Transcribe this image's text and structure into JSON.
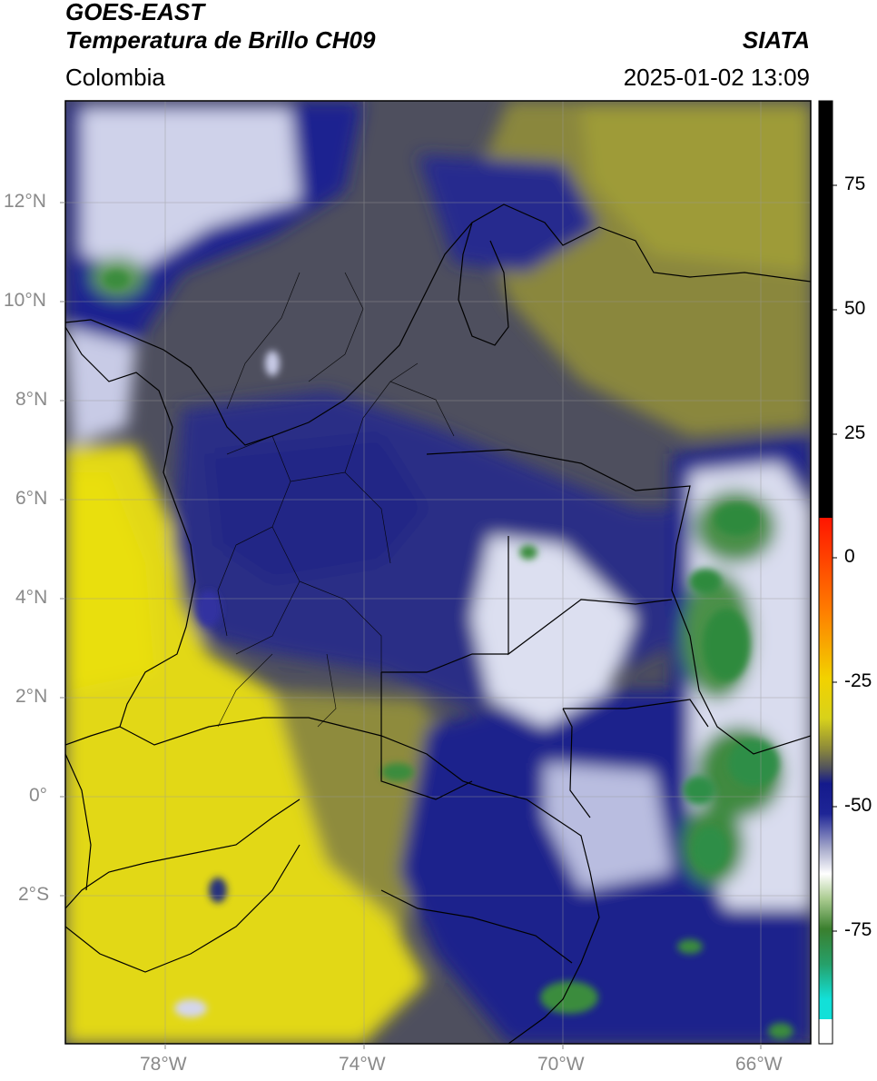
{
  "header": {
    "title_line1": "GOES-EAST",
    "title_line2": "Temperatura de Brillo CH09",
    "source": "SIATA",
    "region": "Colombia",
    "datetime": "2025-01-02 13:09"
  },
  "map": {
    "lat_labels": [
      "12°N",
      "10°N",
      "8°N",
      "6°N",
      "4°N",
      "2°N",
      "0°",
      "2°S"
    ],
    "lon_labels": [
      "78°W",
      "74°W",
      "70°W",
      "66°W"
    ],
    "colors": {
      "warm_yellow": "#e6dc10",
      "olive": "#8f8a3a",
      "gray": "#4e4f5e",
      "navy": "#1a1f8a",
      "white": "#eef0f6",
      "green": "#3c8a3c"
    }
  },
  "colorbar": {
    "tick_labels": [
      "75",
      "50",
      "25",
      "0",
      "-25",
      "-50",
      "-75"
    ]
  }
}
